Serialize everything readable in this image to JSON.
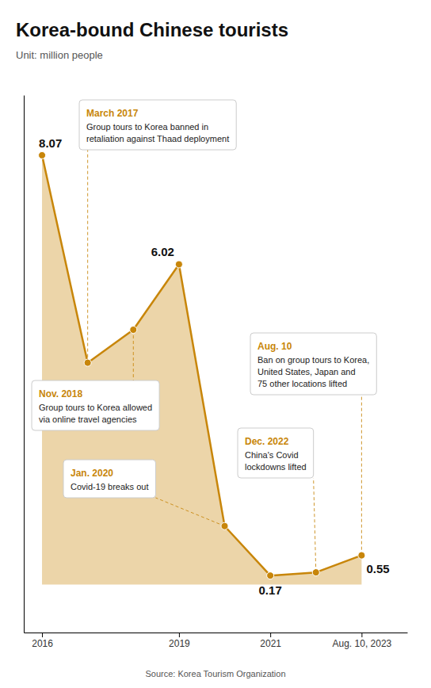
{
  "chart_data": {
    "type": "area",
    "title": "Korea-bound Chinese tourists",
    "subtitle": "Unit: million people",
    "source": "Source: Korea Tourism Organization",
    "x": [
      2016,
      2017,
      2018,
      2019,
      2020,
      2021,
      2022,
      2023
    ],
    "values": [
      8.07,
      4.17,
      4.79,
      6.02,
      1.1,
      0.17,
      0.23,
      0.55
    ],
    "value_labels": [
      "8.07",
      null,
      null,
      "6.02",
      null,
      "0.17",
      null,
      "0.55"
    ],
    "data_labels": true,
    "color": "#C8860A",
    "marker": "circle",
    "xlim": [
      2015.6,
      2024.0
    ],
    "xticks": [
      2016,
      2019,
      2021,
      {
        "value": 2023,
        "label": "Aug. 10, 2023"
      }
    ],
    "ylim": [
      -0.9,
      9.2
    ],
    "yticks": [],
    "tick_labels": "x",
    "grid": false,
    "annotations": [
      {
        "title": "March 2017",
        "lines": [
          "Group tours to Korea banned in",
          "retaliation against Thaad deployment"
        ],
        "x": 2017,
        "y": 4.17
      },
      {
        "title": "Nov. 2018",
        "lines": [
          "Group tours to Korea allowed",
          "via online travel agencies"
        ],
        "x": 2018,
        "y": 4.79
      },
      {
        "title": "Jan. 2020",
        "lines": [
          "Covid-19 breaks out"
        ],
        "x": 2020,
        "y": 1.1
      },
      {
        "title": "Aug. 10",
        "lines": [
          "Ban on group tours to Korea,",
          "United States, Japan and",
          "75 other locations lifted"
        ],
        "x": 2023,
        "y": 0.55
      },
      {
        "title": "Dec. 2022",
        "lines": [
          "China's Covid",
          "lockdowns lifted"
        ],
        "x": 2022,
        "y": 0.23
      }
    ]
  }
}
